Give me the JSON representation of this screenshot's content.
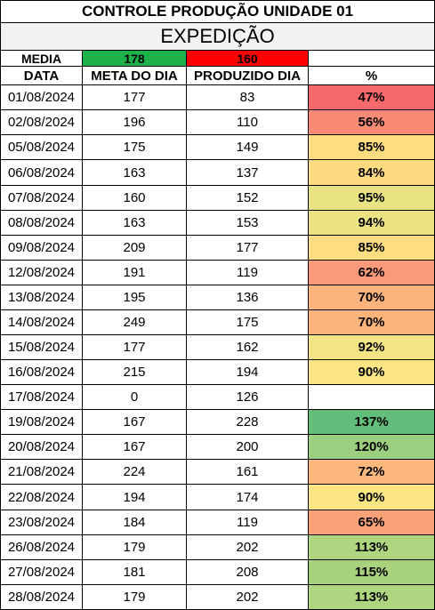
{
  "title": "CONTROLE PRODUÇÃO UNIDADE 01",
  "subtitle": "EXPEDIÇÃO",
  "media": {
    "label": "MEDIA",
    "meta_value": "178",
    "meta_color": "#1db24a",
    "produzido_value": "160",
    "produzido_color": "#ff0000"
  },
  "headers": {
    "data": "DATA",
    "meta": "META DO DIA",
    "produzido": "PRODUZIDO DIA",
    "pct": "%"
  },
  "rows": [
    {
      "data": "01/08/2024",
      "meta": "177",
      "produzido": "83",
      "pct": "47%",
      "color": "#f8696b"
    },
    {
      "data": "02/08/2024",
      "meta": "196",
      "produzido": "110",
      "pct": "56%",
      "color": "#f98b76"
    },
    {
      "data": "05/08/2024",
      "meta": "175",
      "produzido": "149",
      "pct": "85%",
      "color": "#fedd81"
    },
    {
      "data": "06/08/2024",
      "meta": "163",
      "produzido": "137",
      "pct": "84%",
      "color": "#fedb81"
    },
    {
      "data": "07/08/2024",
      "meta": "160",
      "produzido": "152",
      "pct": "95%",
      "color": "#e8e383"
    },
    {
      "data": "08/08/2024",
      "meta": "163",
      "produzido": "153",
      "pct": "94%",
      "color": "#ebe383"
    },
    {
      "data": "09/08/2024",
      "meta": "209",
      "produzido": "177",
      "pct": "85%",
      "color": "#fedd81"
    },
    {
      "data": "12/08/2024",
      "meta": "191",
      "produzido": "119",
      "pct": "62%",
      "color": "#fa9a7a"
    },
    {
      "data": "13/08/2024",
      "meta": "195",
      "produzido": "136",
      "pct": "70%",
      "color": "#fcb37c"
    },
    {
      "data": "14/08/2024",
      "meta": "249",
      "produzido": "175",
      "pct": "70%",
      "color": "#fcb37c"
    },
    {
      "data": "15/08/2024",
      "meta": "177",
      "produzido": "162",
      "pct": "92%",
      "color": "#f4e584"
    },
    {
      "data": "16/08/2024",
      "meta": "215",
      "produzido": "194",
      "pct": "90%",
      "color": "#fbe683"
    },
    {
      "data": "17/08/2024",
      "meta": "0",
      "produzido": "126",
      "pct": "",
      "color": "#ffffff"
    },
    {
      "data": "19/08/2024",
      "meta": "167",
      "produzido": "228",
      "pct": "137%",
      "color": "#63be7b"
    },
    {
      "data": "20/08/2024",
      "meta": "167",
      "produzido": "200",
      "pct": "120%",
      "color": "#9bcf7f"
    },
    {
      "data": "21/08/2024",
      "meta": "224",
      "produzido": "161",
      "pct": "72%",
      "color": "#fcb77d"
    },
    {
      "data": "22/08/2024",
      "meta": "194",
      "produzido": "174",
      "pct": "90%",
      "color": "#fbe683"
    },
    {
      "data": "23/08/2024",
      "meta": "184",
      "produzido": "119",
      "pct": "65%",
      "color": "#fba178"
    },
    {
      "data": "26/08/2024",
      "meta": "179",
      "produzido": "202",
      "pct": "113%",
      "color": "#b0d580"
    },
    {
      "data": "27/08/2024",
      "meta": "181",
      "produzido": "208",
      "pct": "115%",
      "color": "#a9d27f"
    },
    {
      "data": "28/08/2024",
      "meta": "179",
      "produzido": "202",
      "pct": "113%",
      "color": "#b0d580"
    }
  ]
}
